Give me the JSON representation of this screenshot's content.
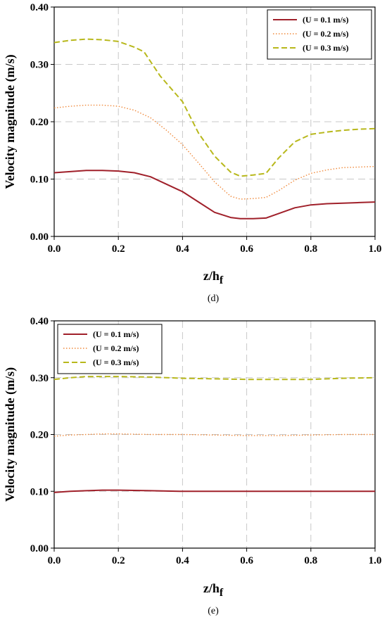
{
  "series_colors": [
    "#a0202a",
    "#f08a3c",
    "#b8b81c"
  ],
  "chart_data": [
    {
      "type": "line",
      "panel_label": "(d)",
      "xlabel_main": "z/h",
      "xlabel_sub": "f",
      "ylabel": "Velocity magnitude (m/s)",
      "xlim": [
        0.0,
        1.0
      ],
      "ylim": [
        0.0,
        0.4
      ],
      "xticks": [
        "0.0",
        "0.2",
        "0.4",
        "0.6",
        "0.8",
        "1.0"
      ],
      "yticks": [
        "0.00",
        "0.10",
        "0.20",
        "0.30",
        "0.40"
      ],
      "grid": true,
      "legend_position": "top-right",
      "series": [
        {
          "name": "(U = 0.1 m/s)",
          "x": [
            0.0,
            0.05,
            0.1,
            0.15,
            0.2,
            0.25,
            0.3,
            0.35,
            0.4,
            0.45,
            0.5,
            0.55,
            0.58,
            0.62,
            0.66,
            0.7,
            0.75,
            0.8,
            0.85,
            0.9,
            0.95,
            1.0
          ],
          "y": [
            0.111,
            0.113,
            0.115,
            0.115,
            0.114,
            0.111,
            0.104,
            0.091,
            0.078,
            0.06,
            0.042,
            0.033,
            0.031,
            0.031,
            0.032,
            0.04,
            0.05,
            0.055,
            0.057,
            0.058,
            0.059,
            0.06
          ]
        },
        {
          "name": "(U = 0.2 m/s)",
          "x": [
            0.0,
            0.05,
            0.1,
            0.15,
            0.2,
            0.25,
            0.3,
            0.35,
            0.4,
            0.45,
            0.5,
            0.55,
            0.58,
            0.62,
            0.66,
            0.7,
            0.75,
            0.8,
            0.85,
            0.9,
            0.95,
            1.0
          ],
          "y": [
            0.224,
            0.227,
            0.229,
            0.229,
            0.227,
            0.22,
            0.207,
            0.185,
            0.16,
            0.128,
            0.095,
            0.07,
            0.065,
            0.066,
            0.068,
            0.08,
            0.098,
            0.11,
            0.116,
            0.12,
            0.121,
            0.122
          ]
        },
        {
          "name": "(U = 0.3 m/s)",
          "x": [
            0.0,
            0.05,
            0.1,
            0.15,
            0.2,
            0.25,
            0.28,
            0.33,
            0.4,
            0.45,
            0.5,
            0.55,
            0.58,
            0.62,
            0.66,
            0.7,
            0.75,
            0.8,
            0.85,
            0.9,
            0.95,
            1.0
          ],
          "y": [
            0.338,
            0.342,
            0.344,
            0.343,
            0.34,
            0.33,
            0.322,
            0.28,
            0.235,
            0.18,
            0.14,
            0.112,
            0.105,
            0.107,
            0.11,
            0.137,
            0.165,
            0.178,
            0.182,
            0.185,
            0.187,
            0.188
          ]
        }
      ]
    },
    {
      "type": "line",
      "panel_label": "(e)",
      "xlabel_main": "z/h",
      "xlabel_sub": "f",
      "ylabel": "Velocity magnitude (m/s)",
      "xlim": [
        0.0,
        1.0
      ],
      "ylim": [
        0.0,
        0.4
      ],
      "xticks": [
        "0.0",
        "0.2",
        "0.4",
        "0.6",
        "0.8",
        "1.0"
      ],
      "yticks": [
        "0.00",
        "0.10",
        "0.20",
        "0.30",
        "0.40"
      ],
      "grid": true,
      "legend_position": "top-left",
      "series": [
        {
          "name": "(U = 0.1 m/s)",
          "x": [
            0.0,
            0.05,
            0.1,
            0.15,
            0.2,
            0.3,
            0.4,
            0.5,
            0.6,
            0.7,
            0.8,
            0.9,
            1.0
          ],
          "y": [
            0.098,
            0.1,
            0.101,
            0.102,
            0.102,
            0.101,
            0.1,
            0.1,
            0.1,
            0.1,
            0.1,
            0.1,
            0.1
          ]
        },
        {
          "name": "(U = 0.2 m/s)",
          "x": [
            0.0,
            0.05,
            0.1,
            0.15,
            0.2,
            0.3,
            0.4,
            0.5,
            0.6,
            0.7,
            0.8,
            0.9,
            1.0
          ],
          "y": [
            0.197,
            0.199,
            0.2,
            0.201,
            0.201,
            0.2,
            0.2,
            0.199,
            0.198,
            0.198,
            0.199,
            0.2,
            0.2
          ]
        },
        {
          "name": "(U = 0.3 m/s)",
          "x": [
            0.0,
            0.05,
            0.1,
            0.15,
            0.2,
            0.3,
            0.4,
            0.5,
            0.6,
            0.7,
            0.8,
            0.9,
            1.0
          ],
          "y": [
            0.297,
            0.3,
            0.302,
            0.302,
            0.302,
            0.301,
            0.299,
            0.298,
            0.297,
            0.297,
            0.297,
            0.299,
            0.3
          ]
        }
      ]
    }
  ]
}
